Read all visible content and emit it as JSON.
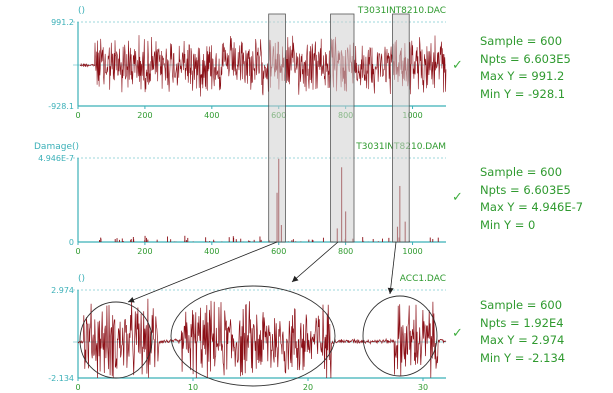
{
  "colors": {
    "axis": "#3bb0b8",
    "signal": "#8b0f16",
    "label": "#2f9a2f",
    "box_fill": "#cfcfcf",
    "box_stroke": "#555555"
  },
  "chart_data": [
    {
      "type": "line",
      "title": "T3031INT8210.DAC",
      "ylabel": "()",
      "ylim": [
        -928.1,
        991.2
      ],
      "y_ticks": [
        "991.2",
        "-928.1"
      ],
      "xlim": [
        0,
        1100
      ],
      "x_ticks": [
        0,
        200,
        400,
        600,
        800,
        1000
      ],
      "stats": {
        "sample": "Sample = 600",
        "npts": "Npts   = 6.603E5",
        "maxy": "Max Y  = 991.2",
        "miny": "Min Y  = -928.1"
      }
    },
    {
      "type": "line",
      "title": "T3031INT8210.DAM",
      "ylabel": "Damage()",
      "ylim": [
        0,
        4.946e-07
      ],
      "y_ticks": [
        "4.946E-7",
        "0"
      ],
      "xlim": [
        0,
        1100
      ],
      "x_ticks": [
        0,
        200,
        400,
        600,
        800,
        1000
      ],
      "spikes": [
        {
          "x": 595,
          "y": 2.9e-07
        },
        {
          "x": 600,
          "y": 4.9e-07
        },
        {
          "x": 608,
          "y": 1e-07
        },
        {
          "x": 775,
          "y": 8e-08
        },
        {
          "x": 788,
          "y": 4.4e-07
        },
        {
          "x": 800,
          "y": 1.8e-07
        },
        {
          "x": 955,
          "y": 9e-08
        },
        {
          "x": 962,
          "y": 3.3e-07
        },
        {
          "x": 978,
          "y": 1.2e-07
        }
      ],
      "stats": {
        "sample": "Sample = 600",
        "npts": "Npts   = 6.603E5",
        "maxy": "Max Y  = 4.946E-7",
        "miny": "Min Y  = 0"
      }
    },
    {
      "type": "line",
      "title": "ACC1.DAC",
      "ylabel": "()",
      "ylim": [
        -2.134,
        2.974
      ],
      "y_ticks": [
        "2.974",
        "-2.134"
      ],
      "xlim": [
        0,
        32
      ],
      "x_ticks": [
        0,
        10,
        20,
        30
      ],
      "stats": {
        "sample": "Sample = 600",
        "npts": "Npts   = 1.92E4",
        "maxy": "Max Y  = 2.974",
        "miny": "Min Y  = -2.134"
      }
    }
  ],
  "highlight_windows": [
    {
      "x0": 570,
      "x1": 620
    },
    {
      "x0": 755,
      "x1": 825
    },
    {
      "x0": 940,
      "x1": 990
    }
  ],
  "check_marks": [
    "✓",
    "✓",
    "✓"
  ]
}
